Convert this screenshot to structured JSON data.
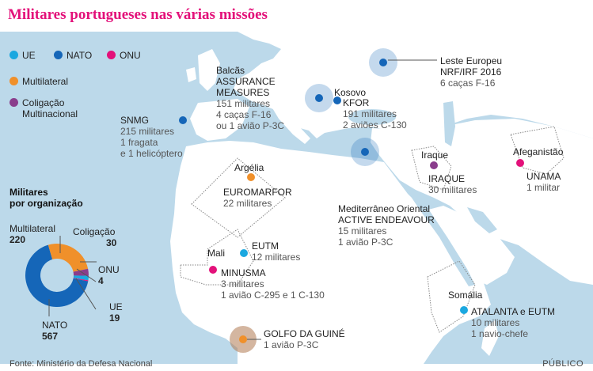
{
  "title": "Militares portugueses nas várias missões",
  "colors": {
    "UE": "#1ba8e0",
    "NATO": "#1566b8",
    "ONU": "#e3117a",
    "Multilateral": "#f0902a",
    "Coligacao": "#8a3d8c",
    "sea": "#bcd9ea",
    "land": "#ffffff"
  },
  "legend": {
    "ue": "UE",
    "nato": "NATO",
    "onu": "ONU",
    "multilateral": "Multilateral",
    "coligacao_1": "Coligação",
    "coligacao_2": "Multinacional"
  },
  "org_summary": {
    "title_1": "Militares",
    "title_2": "por organização",
    "multilateral_label": "Multilateral",
    "multilateral_value": "220",
    "coligacao_label": "Coligação",
    "coligacao_value": "30",
    "onu_label": "ONU",
    "onu_value": "4",
    "ue_label": "UE",
    "ue_value": "19",
    "nato_label": "NATO",
    "nato_value": "567"
  },
  "chart_data": {
    "type": "pie",
    "categories": [
      "NATO",
      "Multilateral",
      "Coligação",
      "UE",
      "ONU"
    ],
    "values": [
      567,
      220,
      30,
      19,
      4
    ]
  },
  "missions": {
    "snmg": {
      "name": "SNMG",
      "l1": "215 militares",
      "l2": "1 fragata",
      "l3": "e 1 helicóptero"
    },
    "balcas": {
      "region": "Balcãs",
      "name1": "ASSURANCE",
      "name2": "MEASURES",
      "l1": "151 militares",
      "l2": "4 caças F-16",
      "l3": "ou 1 avião P-3C"
    },
    "kosovo": {
      "region": "Kosovo",
      "name": "KFOR",
      "l1": "191 militares",
      "l2": "2 aviões C-130"
    },
    "leste": {
      "region": "Leste Europeu",
      "name": "NRF/IRF 2016",
      "l1": "6 caças F-16"
    },
    "argelia": {
      "region": "Argélia",
      "name": "EUROMARFOR",
      "l1": "22 militares"
    },
    "iraque": {
      "region": "Iraque",
      "name": "IRAQUE",
      "l1": "30 militares"
    },
    "afeganistao": {
      "region": "Afeganistão",
      "name": "UNAMA",
      "l1": "1 militar"
    },
    "mediterraneo": {
      "name1": "Mediterrâneo Oriental",
      "name2": "ACTIVE ENDEAVOUR",
      "l1": "15 militares",
      "l2": "1 avião P-3C"
    },
    "mali": {
      "region": "Mali",
      "eutm_name": "EUTM",
      "eutm_l1": "12 militares",
      "minusma_name": "MINUSMA",
      "minusma_l1": "3 militares",
      "minusma_l2": "1 avião C-295 e 1 C-130"
    },
    "somalia": {
      "region": "Somália",
      "name": "ATALANTA e EUTM",
      "l1": "10 militares",
      "l2": "1 navio-chefe"
    },
    "guine": {
      "name": "GOLFO DA GUINÉ",
      "l1": "1 avião P-3C"
    }
  },
  "footer": {
    "source": "Fonte: Ministério da Defesa Nacional",
    "brand": "PÚBLICO"
  }
}
